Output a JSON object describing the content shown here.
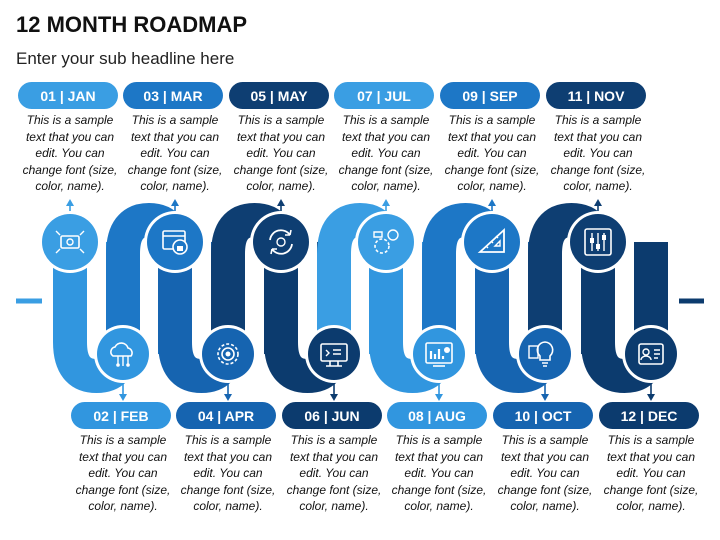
{
  "title": "12 MONTH ROADMAP",
  "subtitle": "Enter your sub headline here",
  "months": [
    {
      "label": "01 | JAN",
      "text": "This is a sample text that you can edit. You can change font (size, color, name).",
      "color": "#3a9ee3",
      "icon": "money-transfer-icon"
    },
    {
      "label": "02 | FEB",
      "text": "This is a sample text that you can edit. You can change font (size, color, name).",
      "color": "#3196df",
      "icon": "cloud-network-icon"
    },
    {
      "label": "03 | MAR",
      "text": "This is a sample text that you can edit. You can change font (size, color, name).",
      "color": "#1d77c6",
      "icon": "browser-security-icon"
    },
    {
      "label": "04 | APR",
      "text": "This is a sample text that you can edit. You can change font (size, color, name).",
      "color": "#1664b0",
      "icon": "gear-settings-icon"
    },
    {
      "label": "05 | MAY",
      "text": "This is a sample text that you can edit. You can change font (size, color, name).",
      "color": "#0e3e72",
      "icon": "refresh-globe-icon"
    },
    {
      "label": "06 | JUN",
      "text": "This is a sample text that you can edit. You can change font (size, color, name).",
      "color": "#0c3b6e",
      "icon": "monitor-dashboard-icon"
    },
    {
      "label": "07 | JUL",
      "text": "This is a sample text that you can edit. You can change font (size, color, name).",
      "color": "#3a9ee3",
      "icon": "workflow-gear-icon"
    },
    {
      "label": "08 | AUG",
      "text": "This is a sample text that you can edit. You can change font (size, color, name).",
      "color": "#3196df",
      "icon": "analytics-chart-icon"
    },
    {
      "label": "09 | SEP",
      "text": "This is a sample text that you can edit. You can change font (size, color, name).",
      "color": "#1d77c6",
      "icon": "ruler-triangle-icon"
    },
    {
      "label": "10 | OCT",
      "text": "This is a sample text that you can edit. You can change font (size, color, name).",
      "color": "#1664b0",
      "icon": "lightbulb-idea-icon"
    },
    {
      "label": "11 | NOV",
      "text": "This is a sample text that you can edit. You can change font (size, color, name).",
      "color": "#0e3e72",
      "icon": "sliders-icon"
    },
    {
      "label": "12 | DEC",
      "text": "This is a sample text that you can edit. You can change font (size, color, name).",
      "color": "#0c3b6e",
      "icon": "id-card-icon"
    }
  ]
}
